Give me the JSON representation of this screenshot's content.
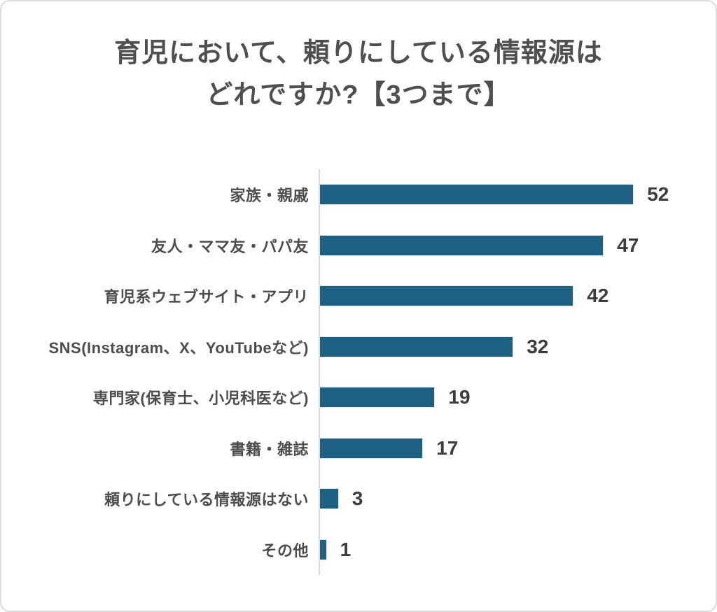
{
  "title": {
    "line1": "育児において、頼りにしている情報源は",
    "line2": "どれですか?【3つまで】"
  },
  "chart_data": {
    "type": "bar",
    "orientation": "horizontal",
    "title": "育児において、頼りにしている情報源はどれですか?【3つまで】",
    "categories": [
      "家族・親戚",
      "友人・ママ友・パパ友",
      "育児系ウェブサイト・アプリ",
      "SNS(Instagram、X、YouTubeなど)",
      "専門家(保育士、小児科医など)",
      "書籍・雑誌",
      "頼りにしている情報源はない",
      "その他"
    ],
    "values": [
      52,
      47,
      42,
      32,
      19,
      17,
      3,
      1
    ],
    "value_labels": [
      "52",
      "47",
      "42",
      "32",
      "19",
      "17",
      "3",
      "1"
    ],
    "xlabel": "",
    "ylabel": "",
    "xlim": [
      0,
      60
    ],
    "grid": false,
    "legend": false,
    "colors": {
      "bar": "#1d6082",
      "axis_line": "#d9d9d9",
      "category_label": "#4d4d4d",
      "value_label": "#3d3d3d",
      "title": "#4f4f4f",
      "card_border": "#dcdcdc",
      "background": "#ffffff"
    }
  }
}
